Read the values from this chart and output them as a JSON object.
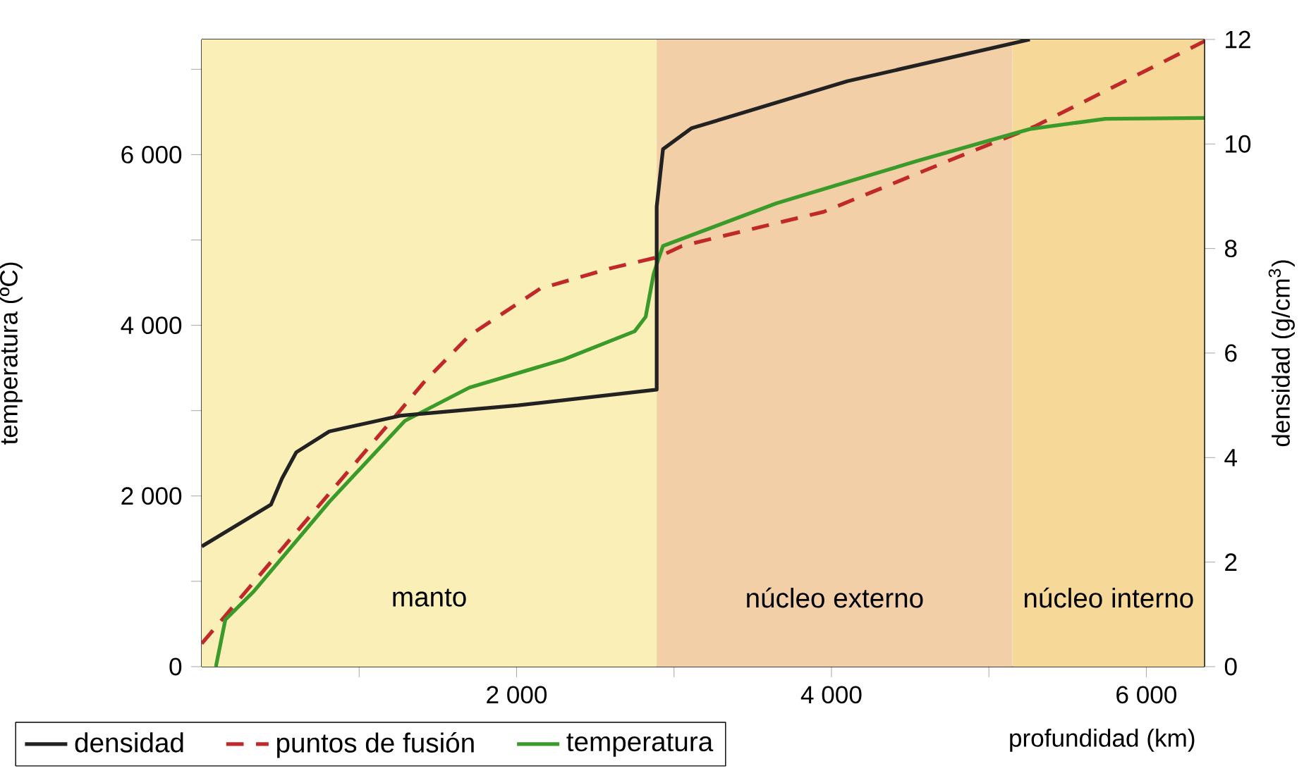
{
  "chart_data": {
    "type": "line",
    "xlabel": "profundidad (km)",
    "ylabel": "temperatura (ºC)",
    "y2label": "densidad (g/cm$^{3}$)",
    "xlim": [
      0,
      6370
    ],
    "ylim": [
      0,
      7350
    ],
    "y2lim": [
      0,
      12
    ],
    "xticks": [
      {
        "value": 1000,
        "label": null
      },
      {
        "value": 2000,
        "label": "2 000"
      },
      {
        "value": 3000,
        "label": null
      },
      {
        "value": 4000,
        "label": "4 000"
      },
      {
        "value": 5000,
        "label": null
      },
      {
        "value": 6000,
        "label": "6 000"
      }
    ],
    "yticks": [
      0,
      {
        "value": 1000,
        "label": null
      },
      {
        "value": 2000,
        "label": "2 000"
      },
      {
        "value": 3000,
        "label": null
      },
      {
        "value": 4000,
        "label": "4 000"
      },
      {
        "value": 5000,
        "label": null
      },
      {
        "value": 6000,
        "label": "6 000"
      },
      {
        "value": 7000,
        "label": null
      }
    ],
    "y2ticks": [
      0,
      2,
      4,
      6,
      8,
      10,
      12
    ],
    "bands": [
      {
        "axis": "x",
        "from": 0,
        "to": 2890,
        "label": "manto",
        "color": "#fbefb8"
      },
      {
        "axis": "x",
        "from": 2890,
        "to": 5150,
        "label": "núcleo externo",
        "color": "#f2cfa6"
      },
      {
        "axis": "x",
        "from": 5150,
        "to": 6370,
        "label": "núcleo interno",
        "color": "#f6d898"
      }
    ],
    "legend": "bottom",
    "series": [
      {
        "name": "densidad",
        "color": "#222222",
        "axis": "y2",
        "line_style": "solid",
        "x": [
          0,
          440,
          510,
          600,
          810,
          1260,
          2010,
          2890,
          2890,
          2930,
          3110,
          4100,
          5260
        ],
        "values": [
          2.3,
          3.1,
          3.6,
          4.1,
          4.5,
          4.8,
          5.0,
          5.3,
          8.8,
          9.9,
          10.3,
          11.2,
          12.0
        ]
      },
      {
        "name": "puntos de fusión",
        "color": "#c0282a",
        "line_style": "dashed",
        "x": [
          0,
          510,
          1260,
          1410,
          1700,
          2150,
          2600,
          2900,
          3050,
          3950,
          4840,
          5290,
          6370
        ],
        "values": [
          270,
          1380,
          3000,
          3330,
          3880,
          4430,
          4670,
          4800,
          4930,
          5330,
          6000,
          6330,
          7330
        ]
      },
      {
        "name": "temperatura",
        "color": "#3a9a2a",
        "line_style": "solid",
        "x": [
          90,
          150,
          330,
          810,
          1290,
          1700,
          2300,
          2750,
          2820,
          2870,
          2900,
          2930,
          3650,
          4550,
          5260,
          5740,
          6370
        ],
        "values": [
          0,
          550,
          880,
          1930,
          2880,
          3270,
          3600,
          3930,
          4100,
          4600,
          4770,
          4930,
          5430,
          5930,
          6300,
          6420,
          6430
        ]
      }
    ]
  }
}
